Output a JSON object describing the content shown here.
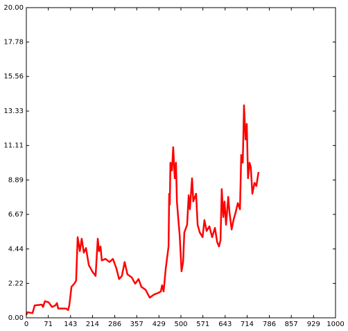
{
  "chart_data": {
    "type": "line",
    "color": "#ff0000",
    "x": [
      0,
      3,
      20,
      27,
      50,
      54,
      60,
      72,
      83,
      94,
      99,
      103,
      128,
      135,
      139,
      146,
      155,
      161,
      166,
      173,
      179,
      186,
      193,
      202,
      213,
      224,
      231,
      235,
      240,
      244,
      256,
      269,
      280,
      291,
      300,
      309,
      318,
      327,
      341,
      352,
      363,
      372,
      386,
      399,
      413,
      426,
      435,
      439,
      444,
      451,
      460,
      462,
      464,
      466,
      471,
      475,
      480,
      484,
      487,
      491,
      496,
      502,
      507,
      511,
      520,
      525,
      529,
      536,
      540,
      549,
      554,
      561,
      570,
      576,
      583,
      592,
      601,
      610,
      617,
      623,
      628,
      632,
      637,
      641,
      646,
      653,
      657,
      664,
      670,
      677,
      684,
      691,
      695,
      700,
      704,
      709,
      713,
      717,
      722,
      726,
      731,
      738,
      744,
      751
    ],
    "values": [
      0.2,
      0.36,
      0.3,
      0.8,
      0.85,
      0.7,
      1.07,
      1.0,
      0.7,
      0.8,
      0.95,
      0.6,
      0.6,
      0.5,
      0.8,
      2.0,
      2.2,
      2.4,
      5.2,
      4.3,
      5.1,
      4.2,
      4.5,
      3.4,
      3.0,
      2.7,
      5.1,
      4.3,
      4.6,
      3.7,
      3.8,
      3.6,
      3.8,
      3.2,
      2.5,
      2.7,
      3.6,
      2.8,
      2.6,
      2.2,
      2.5,
      2.0,
      1.8,
      1.3,
      1.5,
      1.6,
      1.7,
      2.1,
      1.7,
      3.2,
      4.6,
      8.0,
      7.3,
      10.0,
      9.5,
      11.0,
      9.0,
      10.0,
      7.5,
      6.5,
      5.3,
      3.0,
      3.6,
      5.5,
      6.0,
      7.9,
      7.0,
      9.0,
      7.5,
      8.0,
      6.0,
      5.5,
      5.2,
      6.3,
      5.6,
      5.9,
      5.2,
      5.8,
      4.9,
      4.6,
      5.0,
      8.3,
      6.5,
      7.5,
      6.0,
      7.8,
      6.8,
      5.7,
      6.3,
      6.8,
      7.4,
      7.0,
      10.5,
      10.0,
      13.7,
      11.5,
      12.5,
      9.0,
      10.0,
      9.7,
      8.0,
      8.7,
      8.5,
      9.4
    ],
    "xlim": [
      0,
      1000
    ],
    "xticks": [
      0,
      71,
      143,
      214,
      286,
      357,
      429,
      500,
      571,
      643,
      714,
      786,
      857,
      929,
      1000
    ],
    "ylim": [
      0,
      20
    ],
    "yticks": [
      {
        "value": 0,
        "label": "0.00"
      },
      2.22,
      4.44,
      6.67,
      8.89,
      11.11,
      13.33,
      15.56,
      17.78,
      {
        "value": 20,
        "label": "20.00"
      }
    ]
  }
}
